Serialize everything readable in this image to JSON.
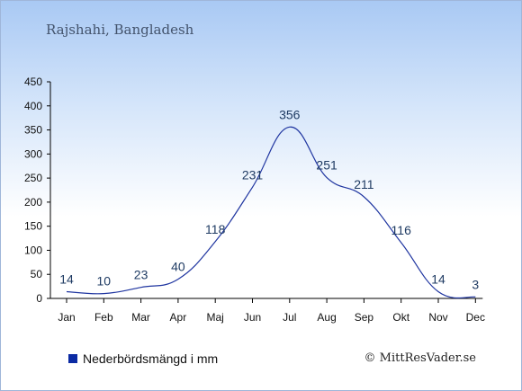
{
  "header": {
    "location": "Rajshahi, Bangladesh"
  },
  "legend": {
    "label": "Nederbördsmängd i mm",
    "color": "#0b2aa3"
  },
  "credit": {
    "text": "© MittResVader.se"
  },
  "colors": {
    "line": "#1f35a0",
    "axis": "#000000",
    "label": "#1f3b63"
  },
  "chart_data": {
    "type": "line",
    "title": "Rajshahi, Bangladesh",
    "xlabel": "",
    "ylabel": "",
    "categories": [
      "Jan",
      "Feb",
      "Mar",
      "Apr",
      "Maj",
      "Jun",
      "Jul",
      "Aug",
      "Sep",
      "Okt",
      "Nov",
      "Dec"
    ],
    "series": [
      {
        "name": "Nederbördsmängd i mm",
        "values": [
          14,
          10,
          23,
          40,
          118,
          231,
          356,
          251,
          211,
          116,
          14,
          3
        ]
      }
    ],
    "ylim": [
      0,
      450
    ],
    "yticks": [
      0,
      50,
      100,
      150,
      200,
      250,
      300,
      350,
      400,
      450
    ],
    "grid": false,
    "data_labels": true,
    "legend_position": "bottom-left"
  }
}
